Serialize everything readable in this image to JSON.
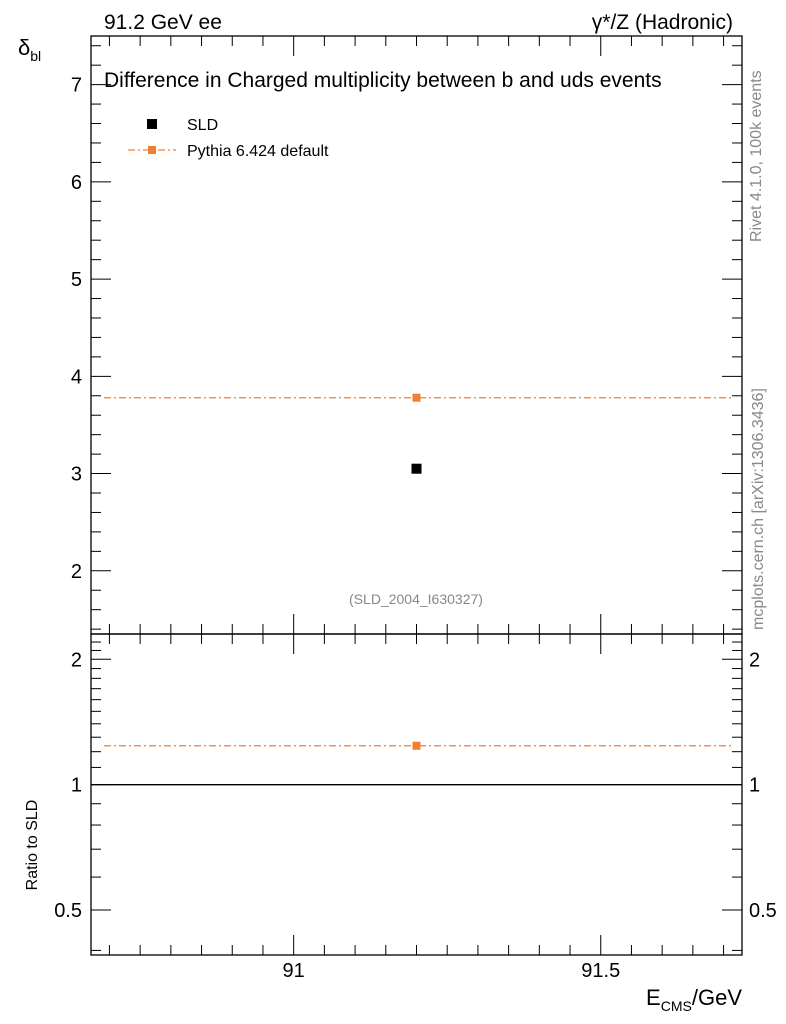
{
  "header": {
    "left": "91.2 GeV ee",
    "right": "γ*/Z (Hadronic)"
  },
  "side_notes": {
    "rivet": "Rivet 4.1.0,  100k events",
    "mcplots": "mcplots.cern.ch [arXiv:1306.3436]"
  },
  "analysis_id": "(SLD_2004_I630327)",
  "chart_data": [
    {
      "type": "scatter",
      "title": "Difference in Charged multiplicity between b and uds events",
      "ylabel_main": "δ",
      "ylabel_sub": "bl",
      "xlim": [
        90.67,
        91.73
      ],
      "ylim": [
        1.35,
        7.5
      ],
      "yticks": [
        2,
        3,
        4,
        5,
        6,
        7
      ],
      "legend_placement": "top-left",
      "series": [
        {
          "name": "SLD",
          "color": "#000000",
          "marker": "square",
          "x": [
            91.2
          ],
          "y": [
            3.05
          ]
        },
        {
          "name": "Pythia 6.424 default",
          "color": "#f07f32",
          "marker": "square",
          "line": "dash-dot",
          "x": [
            91.2
          ],
          "y": [
            3.78
          ]
        }
      ]
    },
    {
      "type": "scatter",
      "ylabel": "Ratio to SLD",
      "xlabel_main": "E",
      "xlabel_sub": "CMS",
      "xlabel_unit": "/GeV",
      "xlim": [
        90.67,
        91.73
      ],
      "ylim": [
        0.39,
        2.3
      ],
      "log_y": true,
      "xticks": [
        91,
        91.5
      ],
      "xtick_labels": [
        "91",
        "91.5"
      ],
      "yticks": [
        0.5,
        1,
        2
      ],
      "ytick_labels": [
        "0.5",
        "1",
        "2"
      ],
      "reference_line": 1,
      "series": [
        {
          "name": "Pythia 6.424 default",
          "color": "#f07f32",
          "marker": "square",
          "line": "dash-dot",
          "x": [
            91.2
          ],
          "y": [
            1.24
          ]
        }
      ]
    }
  ]
}
